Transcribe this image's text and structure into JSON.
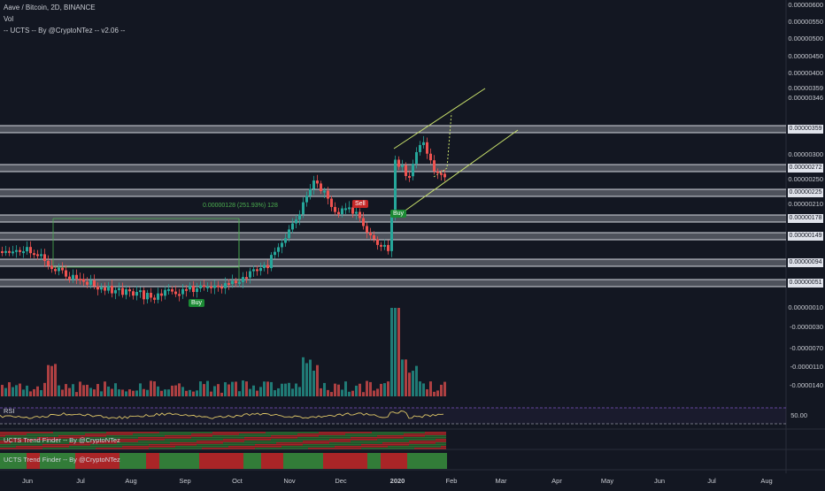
{
  "header": {
    "title": "Aave / Bitcoin, 2D, BINANCE",
    "indicator1": "Vol",
    "indicator2": "-- UCTS -- By @CryptoNTez -- v2.06 --"
  },
  "price_axis": [
    "0.00000600",
    "0.00000550",
    "0.00000500",
    "0.00000450",
    "0.00000400",
    "0.00000359",
    "0.00000346",
    "0.00000300",
    "0.00000272",
    "0.00000250",
    "0.00000225",
    "0.00000210",
    "0.00000178",
    "0.00000149",
    "0.00000094",
    "0.00000051",
    "0.00000010",
    "-0.0000030",
    "-0.0000070",
    "-0.0000110",
    "-0.0000140"
  ],
  "level_labels": [
    "0.00000359",
    "0.00000272",
    "0.00000225",
    "0.00000178",
    "0.00000149",
    "0.00000094",
    "0.00000051"
  ],
  "signals": {
    "buy1": "Buy",
    "buy2": "Buy",
    "sell": "Sell"
  },
  "measure": "0.00000128 (251.93%) 128",
  "rsi": {
    "title": "RSI",
    "level": "50.00"
  },
  "trend1": "UCTS Trend Finder -- By @CryptoNTez",
  "trend2": "UCTS Trend Finder -- By @CryptoNTez",
  "time_axis": [
    "Jun",
    "Jul",
    "Aug",
    "Sep",
    "Oct",
    "Nov",
    "Dec",
    "2020",
    "Feb",
    "Mar",
    "Apr",
    "May",
    "Jun",
    "Jul",
    "Aug"
  ],
  "colors": {
    "up": "#26a69a",
    "down": "#ef5350",
    "level": "#d1d4dc",
    "channel": "#c8e06b",
    "rsi": "#e0c868",
    "rsi_band": "#7e57c2"
  }
}
